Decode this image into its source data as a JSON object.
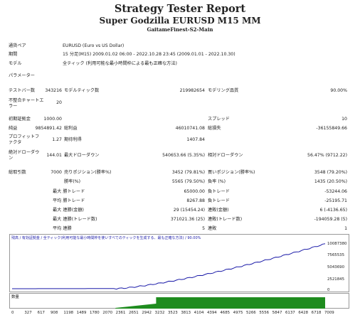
{
  "header": {
    "title": "Strategy Tester Report",
    "subtitle": "Super Godzilla EURUSD M15 MM",
    "server": "GaitameFinest-S2-Main"
  },
  "info": {
    "symbol_label": "通貨ペア",
    "symbol_value": "EURUSD (Euro vs US Dollar)",
    "period_label": "期間",
    "period_value": "15 分足(M15) 2009.01.02 06:00 - 2022.10.28 23:45 (2009.01.01 - 2022.10.30)",
    "model_label": "モデル",
    "model_value": "全ティック (利用可能な最小時間枠による最も正確な方法)",
    "params_label": "パラメーター"
  },
  "stats": {
    "bars_label": "テストバー数",
    "bars_value": "343216",
    "ticks_label": "モデルティック数",
    "ticks_value": "219982654",
    "quality_label": "モデリング品質",
    "quality_value": "90.00%",
    "mismatch_label": "不整合チャートエラー",
    "mismatch_value": "20",
    "deposit_label": "初期証拠金",
    "deposit_value": "1000.00",
    "spread_label": "スプレッド",
    "spread_value": "10",
    "net_label": "純益",
    "net_value": "9854891.42",
    "gross_profit_label": "総利益",
    "gross_profit_value": "46010741.08",
    "gross_loss_label": "総損失",
    "gross_loss_value": "-36155849.66",
    "pf_label": "プロフィットファクタ",
    "pf_value": "1.27",
    "expected_label": "期待利得",
    "expected_value": "1407.84",
    "abs_dd_label": "絶対ドローダウン",
    "abs_dd_value": "144.01",
    "max_dd_label": "最大ドローダウン",
    "max_dd_value": "540653.66 (5.35%)",
    "rel_dd_label": "相対ドローダウン",
    "rel_dd_value": "56.47% (9712.22)",
    "total_label": "総取引数",
    "total_value": "7000",
    "short_label": "売りポジション(勝率%)",
    "short_value": "3452 (79.81%)",
    "long_label": "買いポジション(勝率%)",
    "long_value": "3548 (79.20%)",
    "win_label": "勝率(%)",
    "win_value": "5565 (79.50%)",
    "lose_label": "負率 (%)",
    "lose_value": "1435 (20.50%)",
    "max_win_label": "最大 勝トレード",
    "max_win_value": "65000.00",
    "max_lose_label": "負トレード",
    "max_lose_value": "-53244.06",
    "avg_win_label": "平均 勝トレード",
    "avg_win_value": "8267.88",
    "avg_lose_label": "負トレード",
    "avg_lose_value": "-25195.71",
    "cons_win_label": "最大 連勝(金額)",
    "cons_win_value": "29 (15454.24)",
    "cons_lose_label": "連敗(金額)",
    "cons_lose_value": "6 (-4136.65)",
    "cons_profit_label": "最大 連勝(トレード数)",
    "cons_profit_value": "371021.36 (25)",
    "cons_loss_label": "連敗(トレード数)",
    "cons_loss_value": "-194059.28 (5)",
    "avg_cons_win_label": "平均 連勝",
    "avg_cons_win_value": "5",
    "avg_cons_lose_label": "連敗",
    "avg_cons_lose_value": "1"
  },
  "chart": {
    "legend": "残高 / 有効証拠金 / 全ティック(利用可能な最小時間枠を使いすべてのティックを生成する、最も正確な方法) / 90.00%",
    "volume_label": "数量",
    "y_ticks": [
      "10087380",
      "7565535",
      "5043690",
      "2521845",
      "0"
    ],
    "x_ticks": [
      "0",
      "327",
      "617",
      "908",
      "1198",
      "1489",
      "1780",
      "2070",
      "2361",
      "2651",
      "2942",
      "3232",
      "3523",
      "3813",
      "4104",
      "4394",
      "4685",
      "4975",
      "5266",
      "5556",
      "5847",
      "6137",
      "6428",
      "6718",
      "7009"
    ],
    "line_color": "#1a1aa8",
    "volume_color": "#1e8c1e"
  }
}
